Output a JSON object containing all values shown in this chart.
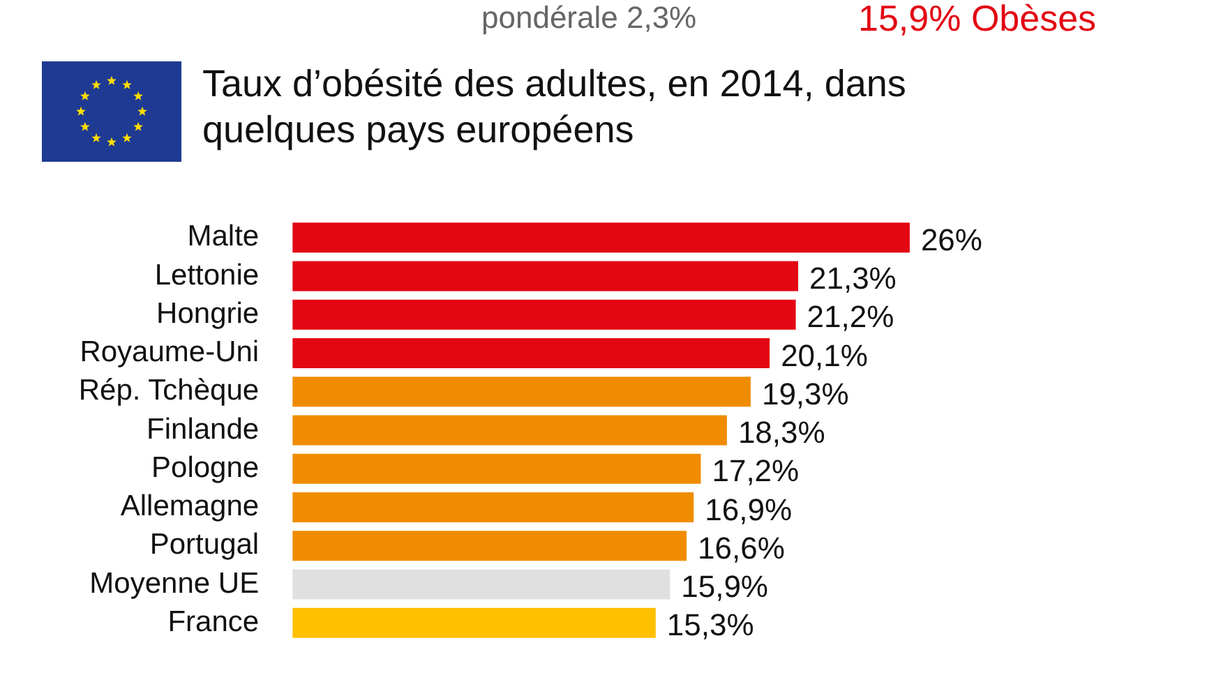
{
  "chart_data": {
    "type": "bar",
    "orientation": "horizontal",
    "title": "Taux d’obésité des adultes, en 2014, dans quelques pays européens",
    "annotations": [
      "pondérale 2,3%",
      "15,9% Obèses"
    ],
    "categories": [
      "Malte",
      "Lettonie",
      "Hongrie",
      "Royaume-Uni",
      "Rép. Tchèque",
      "Finlande",
      "Pologne",
      "Allemagne",
      "Portugal",
      "Moyenne UE",
      "France"
    ],
    "values": [
      26,
      21.3,
      21.2,
      20.1,
      19.3,
      18.3,
      17.2,
      16.9,
      16.6,
      15.9,
      15.3
    ],
    "value_labels": [
      "26%",
      "21,3%",
      "21,2%",
      "20,1%",
      "19,3%",
      "18,3%",
      "17,2%",
      "16,9%",
      "16,6%",
      "15,9%",
      "15,3%"
    ],
    "colors": [
      "#e30613",
      "#e30613",
      "#e30613",
      "#e30613",
      "#f08c00",
      "#f08c00",
      "#f08c00",
      "#f08c00",
      "#f08c00",
      "#e0e0e0",
      "#ffc000"
    ],
    "legend": false
  }
}
